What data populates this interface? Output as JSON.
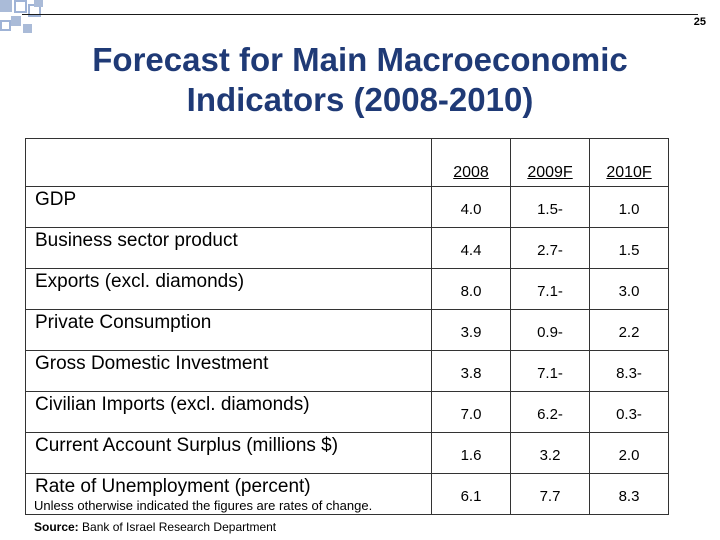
{
  "slide": {
    "page_number": "25",
    "title_line1": "Forecast for Main Macroeconomic",
    "title_line2": "Indicators (2008-2010)"
  },
  "colors": {
    "title": "#1f3a76",
    "corner_squares": "#aabbd8"
  },
  "table": {
    "headers": [
      "",
      "2008",
      "2009F",
      "2010F"
    ],
    "rows": [
      {
        "label": "GDP",
        "values": [
          "4.0",
          "1.5-",
          "1.0"
        ]
      },
      {
        "label": "Business sector product",
        "values": [
          "4.4",
          "2.7-",
          "1.5"
        ]
      },
      {
        "label": "Exports (excl. diamonds)",
        "values": [
          "8.0",
          "7.1-",
          "3.0"
        ]
      },
      {
        "label": "Private Consumption",
        "values": [
          "3.9",
          "0.9-",
          "2.2"
        ]
      },
      {
        "label": "Gross Domestic Investment",
        "values": [
          "3.8",
          "7.1-",
          "8.3-"
        ]
      },
      {
        "label": "Civilian Imports (excl. diamonds)",
        "values": [
          "7.0",
          "6.2-",
          "0.3-"
        ]
      },
      {
        "label": "Current Account Surplus (millions $)",
        "values": [
          "1.6",
          "3.2",
          "2.0"
        ]
      },
      {
        "label": "Rate of Unemployment (percent)",
        "values": [
          "6.1",
          "7.7",
          "8.3"
        ]
      }
    ]
  },
  "footnote": "Unless otherwise indicated the figures are rates of change.",
  "source": {
    "label": "Source:",
    "text": "Bank of Israel Research Department"
  }
}
